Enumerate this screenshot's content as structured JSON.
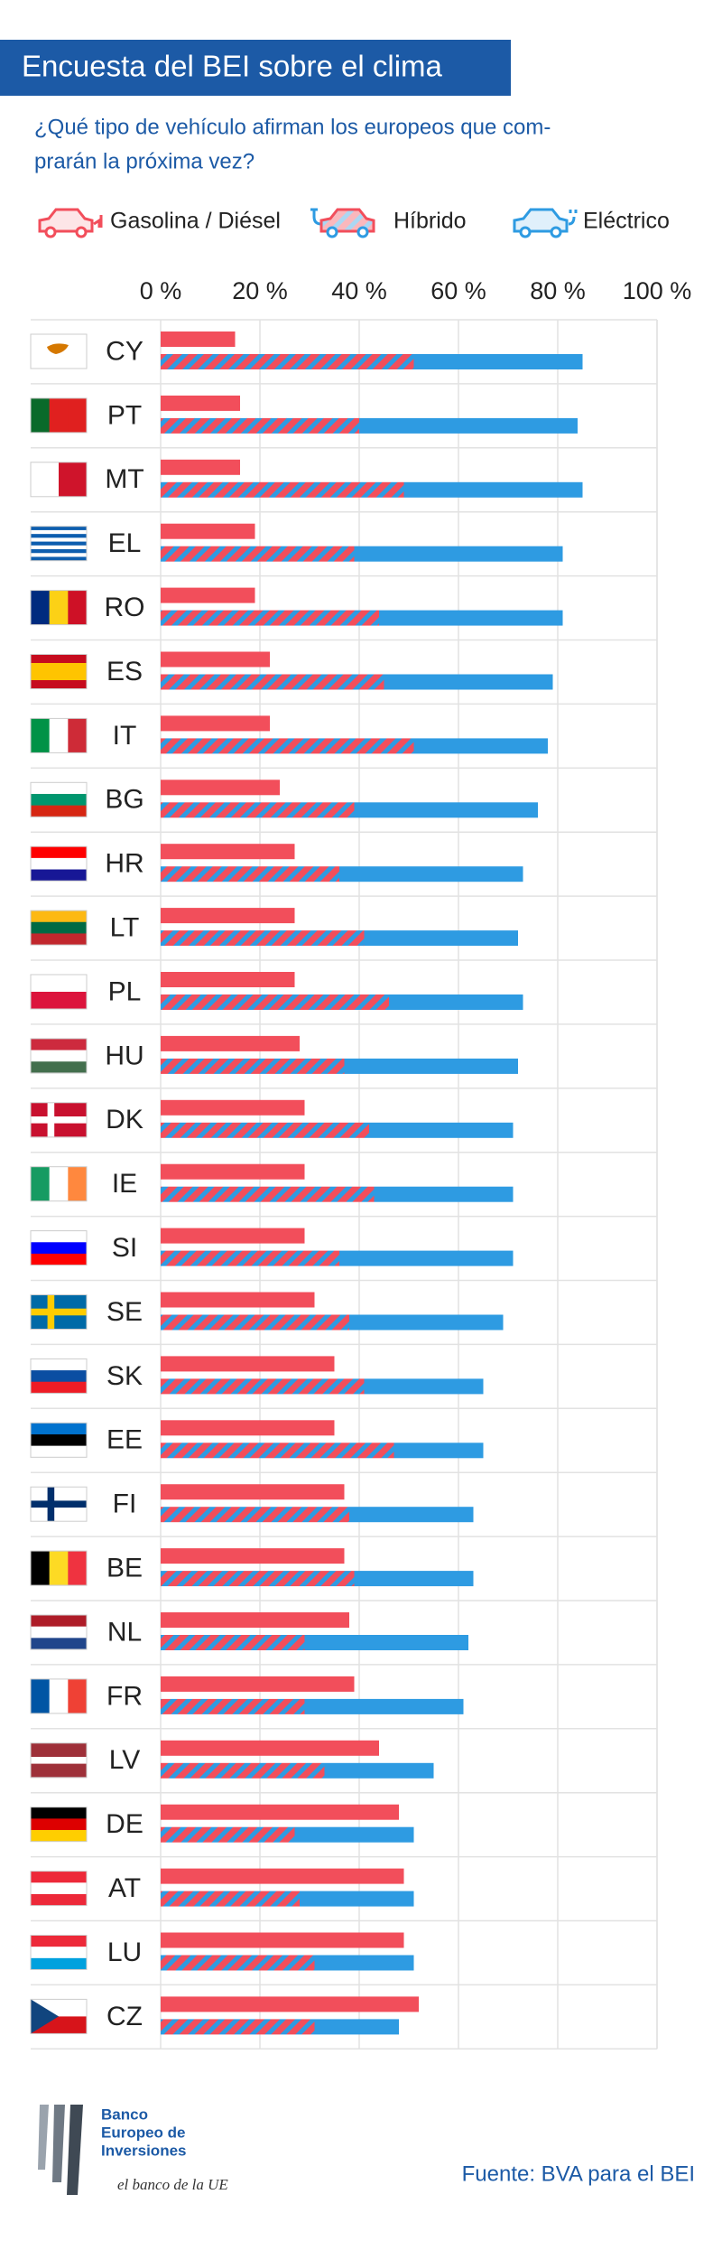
{
  "chart_data": {
    "type": "stacked-bar-horizontal",
    "title": "Encuesta del BEI sobre el clima",
    "subtitle": [
      "¿Qué tipo de vehículo afirman los europeos que com-",
      "prarán la próxima vez?"
    ],
    "categories": [
      "CY",
      "PT",
      "MT",
      "EL",
      "RO",
      "ES",
      "IT",
      "BG",
      "HR",
      "LT",
      "PL",
      "HU",
      "DK",
      "IE",
      "SI",
      "SE",
      "SK",
      "EE",
      "FI",
      "BE",
      "NL",
      "FR",
      "LV",
      "DE",
      "AT",
      "LU",
      "CZ"
    ],
    "series": [
      {
        "name": "Gasolina / Diésel",
        "color": "#f24e5b",
        "values": [
          15,
          16,
          16,
          19,
          19,
          22,
          22,
          24,
          27,
          27,
          27,
          28,
          29,
          29,
          29,
          31,
          35,
          35,
          37,
          37,
          38,
          39,
          44,
          48,
          49,
          49,
          52
        ]
      },
      {
        "name": "Híbrido",
        "color": "#f24e5b",
        "values": [
          51,
          40,
          49,
          39,
          44,
          45,
          51,
          39,
          36,
          41,
          46,
          37,
          42,
          43,
          36,
          38,
          41,
          47,
          38,
          39,
          29,
          29,
          33,
          27,
          28,
          31,
          31
        ]
      },
      {
        "name": "Eléctrico",
        "color": "#2e9be2",
        "values": [
          34,
          44,
          36,
          42,
          37,
          34,
          27,
          37,
          37,
          31,
          27,
          35,
          29,
          28,
          35,
          31,
          24,
          18,
          25,
          24,
          33,
          32,
          22,
          24,
          23,
          20,
          17
        ]
      }
    ],
    "xlim": [
      0,
      100
    ],
    "xticks": [
      {
        "value": 0,
        "label": "0 %"
      },
      {
        "value": 20,
        "label": "20 %"
      },
      {
        "value": 40,
        "label": "40 %"
      },
      {
        "value": 60,
        "label": "60 %"
      },
      {
        "value": 80,
        "label": "80 %"
      },
      {
        "value": 100,
        "label": "100 %"
      }
    ],
    "grid": true
  },
  "footer": {
    "bank": [
      "Banco",
      "Europeo de",
      "Inversiones"
    ],
    "tagline": "el banco de la UE",
    "source": "Fuente: BVA para el BEI"
  }
}
